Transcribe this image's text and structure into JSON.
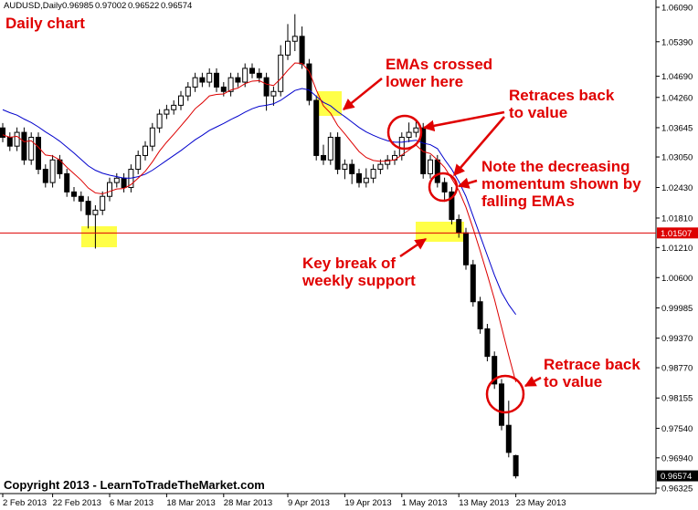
{
  "chart_data": {
    "type": "candlestick",
    "header": "AUDUSD,Daily",
    "title": "Daily chart",
    "copyright": "Copyright 2013 - LearnToTradeTheMarket.com",
    "categories": [
      "2 Feb 2013",
      null,
      null,
      null,
      null,
      null,
      null,
      "22 Feb 2013",
      null,
      null,
      null,
      null,
      null,
      null,
      null,
      "6 Mar 2013",
      null,
      null,
      null,
      null,
      null,
      null,
      null,
      "18 Mar 2013",
      null,
      null,
      null,
      null,
      null,
      null,
      null,
      "28 Mar 2013",
      null,
      null,
      null,
      null,
      null,
      null,
      null,
      null,
      "9 Apr 2013",
      null,
      null,
      null,
      null,
      null,
      null,
      null,
      "19 Apr 2013",
      null,
      null,
      null,
      null,
      null,
      null,
      null,
      "1 May 2013",
      null,
      null,
      null,
      null,
      null,
      null,
      null,
      "13 May 2013",
      null,
      null,
      null,
      null,
      null,
      null,
      null,
      "23 May 2013"
    ],
    "open": [
      1.0364,
      1.0345,
      1.0327,
      1.0355,
      1.0299,
      1.0345,
      1.028,
      1.0253,
      1.0299,
      1.0271,
      1.0234,
      1.0225,
      1.0215,
      1.0188,
      1.0197,
      1.0225,
      1.0253,
      1.0262,
      1.0243,
      1.028,
      1.0308,
      1.0327,
      1.0364,
      1.0392,
      1.0401,
      1.041,
      1.0429,
      1.0447,
      1.0466,
      1.0457,
      1.0475,
      1.0447,
      1.0438,
      1.0466,
      1.0457,
      1.0485,
      1.0475,
      1.0466,
      1.0429,
      1.0438,
      1.0512,
      1.054,
      1.055,
      1.0494,
      1.042,
      1.0308,
      1.0299,
      1.0345,
      1.028,
      1.029,
      1.0271,
      1.0253,
      1.0262,
      1.028,
      1.029,
      1.0299,
      1.0308,
      1.0345,
      1.0355,
      1.0364,
      1.0271,
      1.0299,
      1.0253,
      1.0234,
      1.0178,
      1.0151,
      1.0086,
      1.0011,
      0.9956,
      0.99,
      0.9844,
      0.976,
      0.96985
    ],
    "high": [
      1.0374,
      1.0355,
      1.0365,
      1.0365,
      1.0355,
      1.0355,
      1.029,
      1.0309,
      1.0309,
      1.0281,
      1.0244,
      1.0235,
      1.0225,
      1.0207,
      1.0235,
      1.0263,
      1.0272,
      1.0272,
      1.029,
      1.0318,
      1.0337,
      1.0374,
      1.0402,
      1.0411,
      1.042,
      1.0439,
      1.0457,
      1.0476,
      1.0476,
      1.0485,
      1.0485,
      1.0457,
      1.0476,
      1.0476,
      1.0495,
      1.0495,
      1.0485,
      1.0476,
      1.0448,
      1.0532,
      1.0575,
      1.0595,
      1.057,
      1.0504,
      1.043,
      1.033,
      1.0355,
      1.0355,
      1.03,
      1.03,
      1.0281,
      1.0282,
      1.029,
      1.03,
      1.0309,
      1.0318,
      1.0355,
      1.0375,
      1.038,
      1.0374,
      1.0309,
      1.0309,
      1.0263,
      1.0244,
      1.0188,
      1.0161,
      1.0096,
      1.0021,
      0.9966,
      0.991,
      0.9854,
      0.981,
      0.97002
    ],
    "low": [
      1.0335,
      1.0317,
      1.0317,
      1.0289,
      1.0289,
      1.027,
      1.0243,
      1.0243,
      1.0261,
      1.0224,
      1.0215,
      1.0195,
      1.016,
      1.0119,
      1.0187,
      1.0215,
      1.0243,
      1.0233,
      1.0233,
      1.027,
      1.0298,
      1.0317,
      1.0354,
      1.0382,
      1.0391,
      1.04,
      1.0419,
      1.0437,
      1.0447,
      1.0447,
      1.0437,
      1.0428,
      1.0428,
      1.0447,
      1.0447,
      1.0465,
      1.0456,
      1.0399,
      1.0409,
      1.0428,
      1.0502,
      1.052,
      1.0484,
      1.041,
      1.0298,
      1.0289,
      1.0289,
      1.027,
      1.026,
      1.025,
      1.0243,
      1.0243,
      1.0252,
      1.027,
      1.028,
      1.0289,
      1.0298,
      1.0335,
      1.0345,
      1.0261,
      1.0261,
      1.0243,
      1.0214,
      1.0168,
      1.0141,
      1.0076,
      1.0001,
      0.9946,
      0.989,
      0.9834,
      0.975,
      0.9695,
      0.96522
    ],
    "close": [
      1.0345,
      1.0327,
      1.0355,
      1.0299,
      1.0345,
      1.028,
      1.0253,
      1.0299,
      1.0271,
      1.0234,
      1.0225,
      1.0215,
      1.0188,
      1.0197,
      1.0225,
      1.0253,
      1.0262,
      1.0243,
      1.028,
      1.0308,
      1.0327,
      1.0364,
      1.0392,
      1.0401,
      1.041,
      1.0429,
      1.0447,
      1.0466,
      1.0457,
      1.0475,
      1.0447,
      1.0438,
      1.0466,
      1.0457,
      1.0485,
      1.0475,
      1.0466,
      1.0429,
      1.0438,
      1.0512,
      1.054,
      1.055,
      1.0494,
      1.042,
      1.0308,
      1.0299,
      1.0345,
      1.028,
      1.029,
      1.0271,
      1.0253,
      1.0262,
      1.028,
      1.029,
      1.0299,
      1.0308,
      1.0345,
      1.0355,
      1.0364,
      1.0271,
      1.0299,
      1.0253,
      1.0234,
      1.0178,
      1.0151,
      1.0086,
      1.0011,
      0.9956,
      0.99,
      0.9844,
      0.976,
      0.9705,
      0.96574
    ],
    "ema_fast": {
      "color": "#dd0000",
      "values": [
        1.035,
        1.0345,
        1.0347,
        1.0336,
        1.0338,
        1.0325,
        1.0309,
        1.0307,
        1.0299,
        1.0284,
        1.0271,
        1.0258,
        1.0242,
        1.0232,
        1.023,
        1.0235,
        1.024,
        1.0241,
        1.0249,
        1.0262,
        1.0276,
        1.0295,
        1.0317,
        1.0335,
        1.0351,
        1.0368,
        1.0385,
        1.0403,
        1.0415,
        1.0429,
        1.0432,
        1.0433,
        1.0441,
        1.0445,
        1.0454,
        1.0459,
        1.046,
        1.0453,
        1.045,
        1.0464,
        1.0481,
        1.0496,
        1.0495,
        1.0479,
        1.0441,
        1.0409,
        1.0394,
        1.0369,
        1.0352,
        1.0334,
        1.0316,
        1.0304,
        1.0298,
        1.0296,
        1.0297,
        1.0299,
        1.0309,
        1.0319,
        1.0329,
        1.0316,
        1.0312,
        1.0299,
        1.0284,
        1.0261,
        1.0237,
        1.0203,
        1.016,
        1.0114,
        1.0066,
        1.0016,
        0.9959,
        0.9902,
        0.9848
      ]
    },
    "ema_slow": {
      "color": "#0000cc",
      "values": [
        1.0401,
        1.0395,
        1.039,
        1.0382,
        1.0375,
        1.0366,
        1.0356,
        1.0347,
        1.0337,
        1.0325,
        1.0313,
        1.03,
        1.0287,
        1.0278,
        1.0272,
        1.0268,
        1.0265,
        1.0262,
        1.0262,
        1.0265,
        1.027,
        1.0278,
        1.0288,
        1.0298,
        1.0308,
        1.0318,
        1.0329,
        1.034,
        1.0349,
        1.0359,
        1.0366,
        1.0373,
        1.0381,
        1.0388,
        1.0396,
        1.0403,
        1.0408,
        1.041,
        1.0413,
        1.042,
        1.043,
        1.044,
        1.0444,
        1.0441,
        1.0428,
        1.0416,
        1.0409,
        1.0397,
        1.0387,
        1.0376,
        1.0365,
        1.0356,
        1.0349,
        1.0343,
        1.0338,
        1.0335,
        1.0335,
        1.0337,
        1.0339,
        1.0333,
        1.033,
        1.0322,
        1.03,
        1.028,
        1.0255,
        1.0225,
        1.0185,
        1.0145,
        1.0105,
        1.0065,
        1.003,
        1.0005,
        0.9985
      ]
    },
    "support": {
      "value": 1.01507,
      "color": "#dd0000"
    },
    "ylim": [
      0.96214,
      1.06238
    ],
    "yticks": [
      {
        "value": 1.0609,
        "label": "1.06090"
      },
      {
        "value": 1.0539,
        "label": "1.05390"
      },
      {
        "value": 1.0469,
        "label": "1.04690"
      },
      {
        "value": 1.0426,
        "label": "1.04260"
      },
      1.03645,
      {
        "value": 1.0305,
        "label": "1.03050"
      },
      {
        "value": 1.0243,
        "label": "1.02430"
      },
      {
        "value": 1.0181,
        "label": "1.01810"
      },
      {
        "value": 1.0121,
        "label": "1.01210"
      },
      {
        "value": 1.006,
        "label": "1.00600"
      },
      0.99985,
      {
        "value": 0.9937,
        "label": "0.99370"
      },
      {
        "value": 0.9877,
        "label": "0.98770"
      },
      0.98155,
      {
        "value": 0.9754,
        "label": "0.97540"
      },
      {
        "value": 0.9694,
        "label": "0.96940"
      },
      0.96325
    ],
    "annotations": [
      {
        "lines": [
          "EMAs crossed",
          "lower here"
        ]
      },
      {
        "lines": [
          "Retraces back",
          "to value"
        ]
      },
      {
        "lines": [
          "Note the decreasing",
          "momentum shown by",
          "falling EMAs"
        ]
      },
      {
        "lines": [
          "Key break of",
          "weekly support"
        ]
      },
      {
        "lines": [
          "Retrace back",
          "to value"
        ]
      }
    ]
  }
}
